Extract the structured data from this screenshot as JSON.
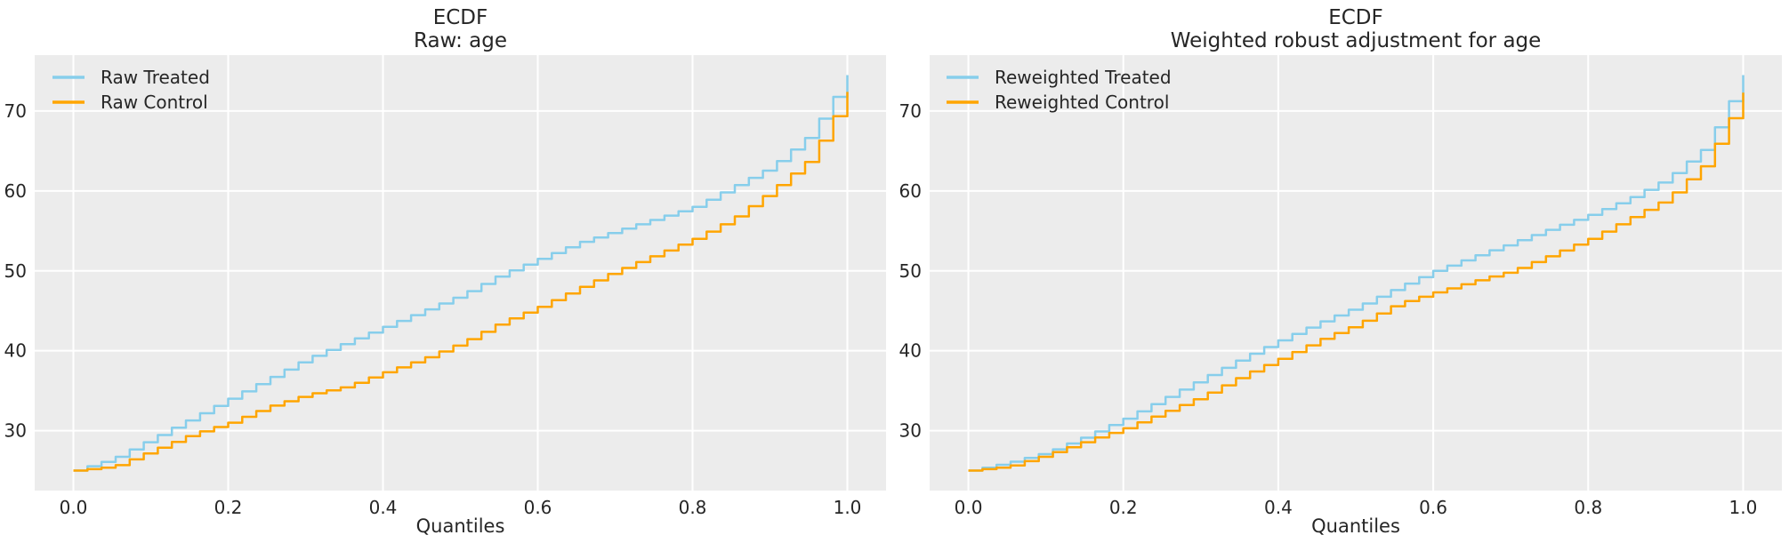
{
  "figure": {
    "background": "#ffffff",
    "plot_background": "#ececec",
    "grid_color": "#ffffff",
    "text_color": "#262626",
    "treated_color": "#87ceeb",
    "control_color": "#ffa500"
  },
  "chart_data": [
    {
      "type": "line",
      "drawstyle": "steps-post",
      "title_line1": "ECDF",
      "title_line2": "Raw: age",
      "xlabel": "Quantiles",
      "grid": true,
      "legend_position": "upper-left",
      "xlim": [
        -0.05,
        1.05
      ],
      "ylim": [
        22.5,
        77
      ],
      "xtick_values": [
        0.0,
        0.2,
        0.4,
        0.6,
        0.8,
        1.0
      ],
      "xtick_labels": [
        "0.0",
        "0.2",
        "0.4",
        "0.6",
        "0.8",
        "1.0"
      ],
      "ytick_values": [
        30,
        40,
        50,
        60,
        70
      ],
      "ytick_labels": [
        "30",
        "40",
        "50",
        "60",
        "70"
      ],
      "x": [
        0,
        0.05,
        0.1,
        0.15,
        0.2,
        0.25,
        0.3,
        0.35,
        0.4,
        0.45,
        0.5,
        0.55,
        0.6,
        0.65,
        0.7,
        0.75,
        0.8,
        0.85,
        0.9,
        0.95,
        1.0
      ],
      "series": [
        {
          "name": "Raw Treated",
          "color": "#87ceeb",
          "values": [
            25,
            26.5,
            29,
            31.5,
            34,
            36.5,
            39,
            41,
            43,
            45,
            47,
            49.5,
            51.5,
            53.5,
            55,
            56.5,
            58,
            60.5,
            63,
            67,
            74.5
          ]
        },
        {
          "name": "Raw Control",
          "color": "#ffa500",
          "values": [
            25,
            25.5,
            27.5,
            29.5,
            31,
            33,
            34.5,
            35.5,
            37.3,
            39,
            41,
            43.5,
            45.5,
            47.8,
            50,
            52,
            54,
            56.5,
            60,
            64,
            72.4
          ]
        }
      ]
    },
    {
      "type": "line",
      "drawstyle": "steps-post",
      "title_line1": "ECDF",
      "title_line2": "Weighted robust adjustment for age",
      "xlabel": "Quantiles",
      "grid": true,
      "legend_position": "upper-left",
      "xlim": [
        -0.05,
        1.05
      ],
      "ylim": [
        22.5,
        77
      ],
      "xtick_values": [
        0.0,
        0.2,
        0.4,
        0.6,
        0.8,
        1.0
      ],
      "xtick_labels": [
        "0.0",
        "0.2",
        "0.4",
        "0.6",
        "0.8",
        "1.0"
      ],
      "ytick_values": [
        30,
        40,
        50,
        60,
        70
      ],
      "ytick_labels": [
        "30",
        "40",
        "50",
        "60",
        "70"
      ],
      "x": [
        0,
        0.05,
        0.1,
        0.15,
        0.2,
        0.25,
        0.3,
        0.35,
        0.4,
        0.45,
        0.5,
        0.55,
        0.6,
        0.65,
        0.7,
        0.75,
        0.8,
        0.85,
        0.9,
        0.95,
        1.0
      ],
      "series": [
        {
          "name": "Reweighted Treated",
          "color": "#87ceeb",
          "values": [
            25,
            26,
            27.3,
            29.3,
            31.5,
            34,
            36.5,
            39,
            41.3,
            43.5,
            45.5,
            47.8,
            50,
            51.8,
            53.5,
            55.3,
            57,
            59,
            61.5,
            65.5,
            74.5
          ]
        },
        {
          "name": "Reweighted Control",
          "color": "#ffa500",
          "values": [
            25,
            25.5,
            27,
            28.7,
            30.3,
            32.3,
            34.3,
            36.8,
            39,
            41.3,
            43.3,
            45.8,
            47.3,
            48.7,
            50,
            52,
            54,
            56.5,
            59,
            63.5,
            72.3
          ]
        }
      ]
    }
  ]
}
